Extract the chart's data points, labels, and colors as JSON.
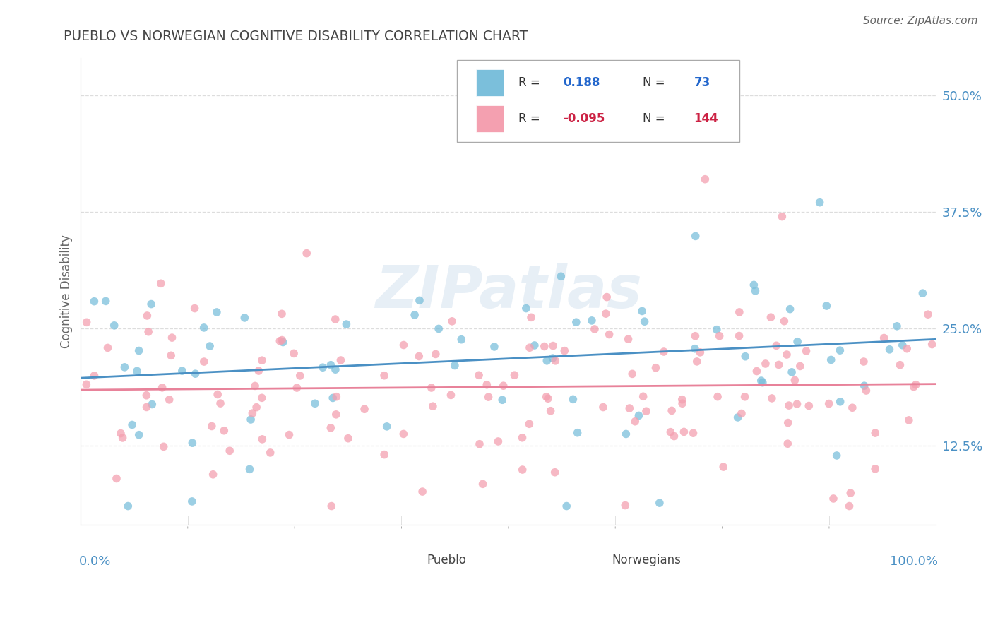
{
  "title": "PUEBLO VS NORWEGIAN COGNITIVE DISABILITY CORRELATION CHART",
  "source": "Source: ZipAtlas.com",
  "ylabel": "Cognitive Disability",
  "x_range": [
    0.0,
    1.0
  ],
  "y_range": [
    0.04,
    0.54
  ],
  "y_ticks": [
    0.125,
    0.25,
    0.375,
    0.5
  ],
  "y_tick_labels": [
    "12.5%",
    "25.0%",
    "37.5%",
    "50.0%"
  ],
  "pueblo_R": 0.188,
  "pueblo_N": 73,
  "norwegian_R": -0.095,
  "norwegian_N": 144,
  "pueblo_color": "#7bbfdb",
  "norwegian_color": "#f4a0b0",
  "pueblo_line_color": "#4a90c4",
  "norwegian_line_color": "#e8829a",
  "watermark": "ZIPatlas",
  "background_color": "#ffffff",
  "grid_color": "#dddddd",
  "legend_R1_color": "#2266cc",
  "legend_N1_color": "#2266cc",
  "legend_R2_color": "#cc2244",
  "legend_N2_color": "#cc2244",
  "axis_label_color": "#4a90c4",
  "title_color": "#444444",
  "ylabel_color": "#666666",
  "source_color": "#666666"
}
